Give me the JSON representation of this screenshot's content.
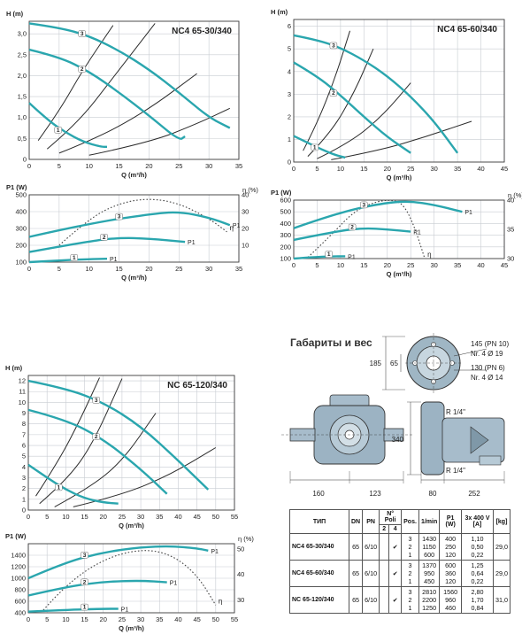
{
  "colors": {
    "pump_curve": "#2aa6ae",
    "system_curve": "#2b2b2b",
    "efficiency_curve": "#444444",
    "grid": "#c8ccd2"
  },
  "chart_data": [
    {
      "id": "nc4-65-30-h",
      "type": "line",
      "title": "NC4 65-30/340",
      "xlabel": "Q (m³/h)",
      "ylabel": "H (m)",
      "xlim": [
        0,
        35
      ],
      "ylim": [
        0,
        3.3
      ],
      "xticks": [
        0,
        5,
        10,
        15,
        20,
        25,
        30,
        35
      ],
      "yticks": [
        0,
        0.5,
        1.0,
        1.5,
        2.0,
        2.5,
        3.0
      ],
      "ytick_labels": [
        "0",
        "0,5",
        "1,0",
        "1,5",
        "2,0",
        "2,5",
        "3,0"
      ],
      "series": [
        {
          "name": "3",
          "x": [
            0,
            5,
            10,
            15,
            20,
            25,
            30,
            33.5
          ],
          "y": [
            3.25,
            3.15,
            2.95,
            2.6,
            2.15,
            1.6,
            1.0,
            0.75
          ]
        },
        {
          "name": "2",
          "x": [
            0,
            5,
            10,
            15,
            20,
            25,
            26
          ],
          "y": [
            2.62,
            2.45,
            2.1,
            1.6,
            1.05,
            0.45,
            0.55
          ]
        },
        {
          "name": "1",
          "x": [
            0,
            3,
            6,
            9,
            12,
            13
          ],
          "y": [
            1.35,
            0.95,
            0.65,
            0.42,
            0.3,
            0.3
          ]
        }
      ],
      "system_curves": [
        {
          "x": [
            1.5,
            5,
            9,
            14
          ],
          "y": [
            0.45,
            1.15,
            2.15,
            3.2
          ]
        },
        {
          "x": [
            3,
            8,
            14,
            21
          ],
          "y": [
            0.25,
            0.85,
            1.95,
            3.25
          ]
        },
        {
          "x": [
            5,
            12,
            20,
            28
          ],
          "y": [
            0.15,
            0.55,
            1.2,
            2.05
          ]
        },
        {
          "x": [
            10,
            20,
            28,
            33.5
          ],
          "y": [
            0.1,
            0.4,
            0.85,
            1.22
          ]
        }
      ]
    },
    {
      "id": "nc4-65-30-p",
      "type": "line",
      "xlabel": "Q (m³/h)",
      "ylabel": "P1 (W)",
      "ylabel_right": "η (%)",
      "xlim": [
        0,
        35
      ],
      "ylim": [
        100,
        500
      ],
      "y2lim": [
        0,
        40
      ],
      "xticks": [
        0,
        5,
        10,
        15,
        20,
        25,
        30,
        35
      ],
      "yticks": [
        100,
        200,
        300,
        400,
        500
      ],
      "y2ticks": [
        10,
        20,
        30,
        40
      ],
      "series": [
        {
          "name": "3",
          "x": [
            0,
            10,
            20,
            25,
            30,
            33.5
          ],
          "y": [
            250,
            330,
            385,
            400,
            365,
            320
          ]
        },
        {
          "name": "2",
          "x": [
            0,
            10,
            15,
            20,
            26
          ],
          "y": [
            160,
            225,
            245,
            240,
            220
          ]
        },
        {
          "name": "1",
          "x": [
            0,
            5,
            10,
            13
          ],
          "y": [
            100,
            110,
            118,
            120
          ]
        }
      ],
      "efficiency": {
        "name": "η",
        "x": [
          5,
          10,
          15,
          20,
          25,
          30,
          33
        ],
        "y": [
          10,
          26,
          35,
          38,
          35,
          26,
          18
        ]
      },
      "labels": [
        "P1",
        "P1",
        "P1",
        "η"
      ]
    },
    {
      "id": "nc4-65-60-h",
      "type": "line",
      "title": "NC4 65-60/340",
      "xlabel": "Q (m³/h)",
      "ylabel": "H (m)",
      "xlim": [
        0,
        45
      ],
      "ylim": [
        0,
        6.3
      ],
      "xticks": [
        0,
        5,
        10,
        15,
        20,
        25,
        30,
        35,
        40,
        45
      ],
      "yticks": [
        0,
        1,
        2,
        3,
        4,
        5,
        6
      ],
      "series": [
        {
          "name": "3",
          "x": [
            0,
            5,
            10,
            15,
            20,
            25,
            30,
            35
          ],
          "y": [
            5.6,
            5.4,
            5.05,
            4.5,
            3.8,
            2.9,
            1.8,
            0.4
          ]
        },
        {
          "name": "2",
          "x": [
            0,
            5,
            10,
            15,
            20,
            25
          ],
          "y": [
            4.4,
            3.8,
            2.95,
            2.0,
            1.1,
            0.4
          ]
        },
        {
          "name": "1",
          "x": [
            0,
            3,
            6,
            9,
            11
          ],
          "y": [
            1.15,
            0.85,
            0.55,
            0.3,
            0.2
          ]
        }
      ],
      "system_curves": [
        {
          "x": [
            2,
            5,
            9,
            12
          ],
          "y": [
            0.5,
            1.7,
            3.8,
            5.8
          ]
        },
        {
          "x": [
            3,
            8,
            13,
            17
          ],
          "y": [
            0.25,
            1.3,
            3.1,
            5.0
          ]
        },
        {
          "x": [
            5,
            12,
            19,
            25
          ],
          "y": [
            0.15,
            0.85,
            2.05,
            3.5
          ]
        },
        {
          "x": [
            8,
            18,
            28,
            38
          ],
          "y": [
            0.1,
            0.5,
            1.1,
            1.8
          ]
        }
      ]
    },
    {
      "id": "nc4-65-60-p",
      "type": "line",
      "xlabel": "Q (m³/h)",
      "ylabel": "P1 (W)",
      "ylabel_right": "η (%)",
      "xlim": [
        0,
        45
      ],
      "ylim": [
        100,
        600
      ],
      "y2lim": [
        30,
        40
      ],
      "xticks": [
        0,
        5,
        10,
        15,
        20,
        25,
        30,
        35,
        40,
        45
      ],
      "yticks": [
        100,
        200,
        300,
        400,
        500,
        600
      ],
      "y2ticks": [
        30,
        35,
        40
      ],
      "series": [
        {
          "name": "3",
          "x": [
            0,
            10,
            20,
            25,
            30,
            36
          ],
          "y": [
            360,
            500,
            580,
            590,
            560,
            500
          ]
        },
        {
          "name": "2",
          "x": [
            0,
            10,
            15,
            20,
            25
          ],
          "y": [
            260,
            340,
            360,
            350,
            330
          ]
        },
        {
          "name": "1",
          "x": [
            0,
            5,
            10,
            11
          ],
          "y": [
            100,
            115,
            120,
            120
          ]
        }
      ],
      "efficiency": {
        "name": "η",
        "x": [
          3,
          8,
          13,
          18,
          22,
          24,
          26,
          28
        ],
        "y": [
          30.2,
          34,
          38.2,
          39.9,
          40,
          38.6,
          35,
          30
        ]
      },
      "labels": [
        "P1",
        "P1",
        "P1",
        "η"
      ]
    },
    {
      "id": "nc-65-120-h",
      "type": "line",
      "title": "NC 65-120/340",
      "xlabel": "Q (m³/h)",
      "ylabel": "H (m)",
      "xlim": [
        0,
        55
      ],
      "ylim": [
        0,
        12.5
      ],
      "xticks": [
        0,
        5,
        10,
        15,
        20,
        25,
        30,
        35,
        40,
        45,
        50,
        55
      ],
      "yticks": [
        0,
        1,
        2,
        3,
        4,
        5,
        6,
        7,
        8,
        9,
        10,
        11,
        12
      ],
      "series": [
        {
          "name": "3",
          "x": [
            0,
            10,
            20,
            30,
            40,
            48
          ],
          "y": [
            12,
            11.3,
            10,
            7.8,
            4.6,
            1.9
          ]
        },
        {
          "name": "2",
          "x": [
            0,
            10,
            20,
            30,
            37
          ],
          "y": [
            9.3,
            8.4,
            6.6,
            3.8,
            1.5
          ]
        },
        {
          "name": "1",
          "x": [
            0,
            5,
            10,
            15,
            20,
            24
          ],
          "y": [
            4.2,
            3.0,
            1.9,
            1.1,
            0.7,
            0.6
          ]
        }
      ],
      "system_curves": [
        {
          "x": [
            2,
            8,
            14,
            19
          ],
          "y": [
            1.3,
            4.5,
            8.5,
            12.3
          ]
        },
        {
          "x": [
            3,
            10,
            17,
            25
          ],
          "y": [
            0.6,
            2.7,
            6.0,
            12.2
          ]
        },
        {
          "x": [
            7,
            16,
            25,
            34
          ],
          "y": [
            0.3,
            2.0,
            4.5,
            9.0
          ]
        },
        {
          "x": [
            12,
            25,
            38,
            50
          ],
          "y": [
            0.3,
            1.4,
            3.3,
            5.8
          ]
        }
      ]
    },
    {
      "id": "nc-65-120-p",
      "type": "line",
      "xlabel": "Q (m³/h)",
      "ylabel": "P1 (W)",
      "ylabel_right": "η (%)",
      "xlim": [
        0,
        55
      ],
      "ylim": [
        400,
        1600
      ],
      "y2lim": [
        25,
        52
      ],
      "xticks": [
        0,
        5,
        10,
        15,
        20,
        25,
        30,
        35,
        40,
        45,
        50,
        55
      ],
      "yticks": [
        400,
        600,
        800,
        1000,
        1200,
        1400
      ],
      "y2ticks": [
        30,
        40,
        50
      ],
      "series": [
        {
          "name": "3",
          "x": [
            0,
            10,
            20,
            30,
            38,
            45,
            48
          ],
          "y": [
            1000,
            1280,
            1450,
            1540,
            1560,
            1520,
            1480
          ]
        },
        {
          "name": "2",
          "x": [
            0,
            10,
            20,
            30,
            37
          ],
          "y": [
            700,
            850,
            940,
            960,
            930
          ]
        },
        {
          "name": "1",
          "x": [
            0,
            10,
            20,
            24
          ],
          "y": [
            420,
            450,
            470,
            470
          ]
        }
      ],
      "efficiency": {
        "name": "η",
        "x": [
          4,
          10,
          20,
          30,
          38,
          45,
          50
        ],
        "y": [
          26,
          36,
          46,
          50,
          48,
          40,
          28
        ]
      },
      "labels": [
        "P1",
        "P1",
        "P1",
        "η"
      ]
    }
  ],
  "dimensions": {
    "heading": "Габариты и вес",
    "flange_labels": [
      "145 (PN 10)",
      "Nr. 4 Ø 19",
      "130 (PN 6)",
      "Nr. 4 Ø 14"
    ],
    "dim_185": "185",
    "dim_65": "65",
    "dim_340": "340",
    "dim_160": "160",
    "dim_123": "123",
    "dim_80": "80",
    "dim_252": "252",
    "thread_top": "R 1/4\"",
    "thread_bottom": "R 1/4\""
  },
  "spec_table": {
    "headers": {
      "type": "ТИП",
      "dn": "DN",
      "pn": "PN",
      "poli": "N° Poli",
      "poli_2": "2",
      "poli_4": "4",
      "pos": "Pos.",
      "rpm": "1/min",
      "p1": "P1 (W)",
      "amps": "3x 400 V [A]",
      "kg": "[kg]"
    },
    "rows": [
      {
        "type": "NC4 65-30/340",
        "dn": "65",
        "pn": "6/10",
        "poli_4": "✔",
        "pos": [
          "3",
          "2",
          "1"
        ],
        "rpm": [
          "1430",
          "1150",
          "600"
        ],
        "p1": [
          "400",
          "250",
          "120"
        ],
        "amps": [
          "1,10",
          "0,50",
          "0,22"
        ],
        "kg": "29,0"
      },
      {
        "type": "NC4 65-60/340",
        "dn": "65",
        "pn": "6/10",
        "poli_4": "✔",
        "pos": [
          "3",
          "2",
          "1"
        ],
        "rpm": [
          "1370",
          "950",
          "450"
        ],
        "p1": [
          "600",
          "360",
          "120"
        ],
        "amps": [
          "1,25",
          "0,64",
          "0,22"
        ],
        "kg": "29,0"
      },
      {
        "type": "NC 65-120/340",
        "dn": "65",
        "pn": "6/10",
        "poli_4": "✔",
        "pos": [
          "3",
          "2",
          "1"
        ],
        "rpm": [
          "2810",
          "2200",
          "1250"
        ],
        "p1": [
          "1560",
          "960",
          "460"
        ],
        "amps": [
          "2,80",
          "1,70",
          "0,84"
        ],
        "kg": "31,0"
      }
    ]
  }
}
